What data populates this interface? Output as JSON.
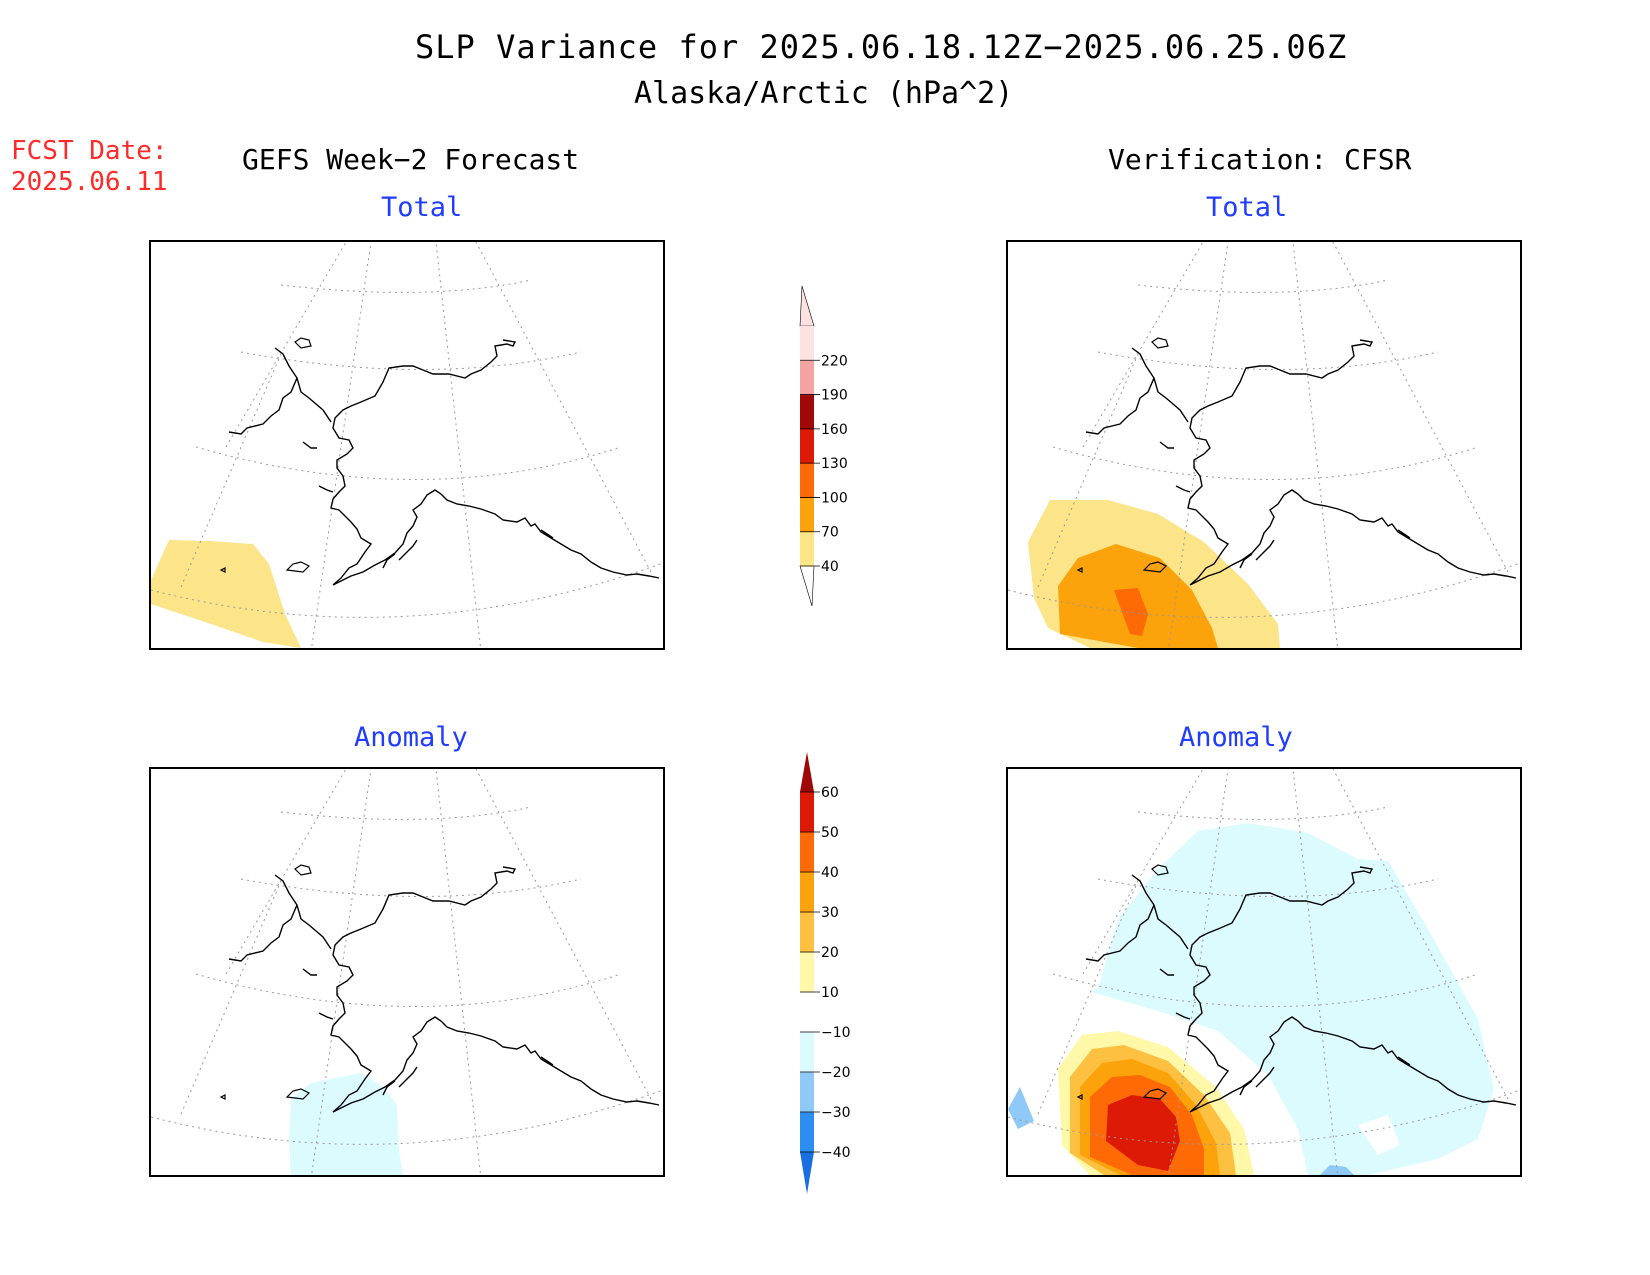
{
  "header": {
    "title": "SLP Variance for 2025.06.18.12Z−2025.06.25.06Z",
    "subtitle": "Alaska/Arctic (hPa^2)",
    "fcst_label": "FCST Date:",
    "fcst_date": "2025.06.11"
  },
  "columns": {
    "left": "GEFS Week−2 Forecast",
    "right": "Verification: CFSR"
  },
  "panels": {
    "top_left_label": "Total",
    "top_right_label": "Total",
    "bottom_left_label": "Anomaly",
    "bottom_right_label": "Anomaly"
  },
  "colorbar_total": {
    "ticks": [
      "40",
      "70",
      "100",
      "130",
      "160",
      "190",
      "220"
    ],
    "colors": [
      "#fce488",
      "#fca20a",
      "#fd6a06",
      "#dd1a06",
      "#a00808",
      "#f4a3a3",
      "#fde2e2"
    ]
  },
  "colorbar_anomaly": {
    "ticks": [
      "−40",
      "−30",
      "−20",
      "−10",
      "10",
      "20",
      "30",
      "40",
      "50",
      "60"
    ],
    "colors": [
      "#1a6fe0",
      "#2c8ef0",
      "#8ec9f8",
      "#dcfbff",
      "#ffffff",
      "#fff8a8",
      "#fdc040",
      "#fca20a",
      "#fd6a06",
      "#dd1a06",
      "#a00808"
    ]
  },
  "colors": {
    "fcst_date": "#ff2a2a",
    "panel_label": "#1f3cff"
  }
}
